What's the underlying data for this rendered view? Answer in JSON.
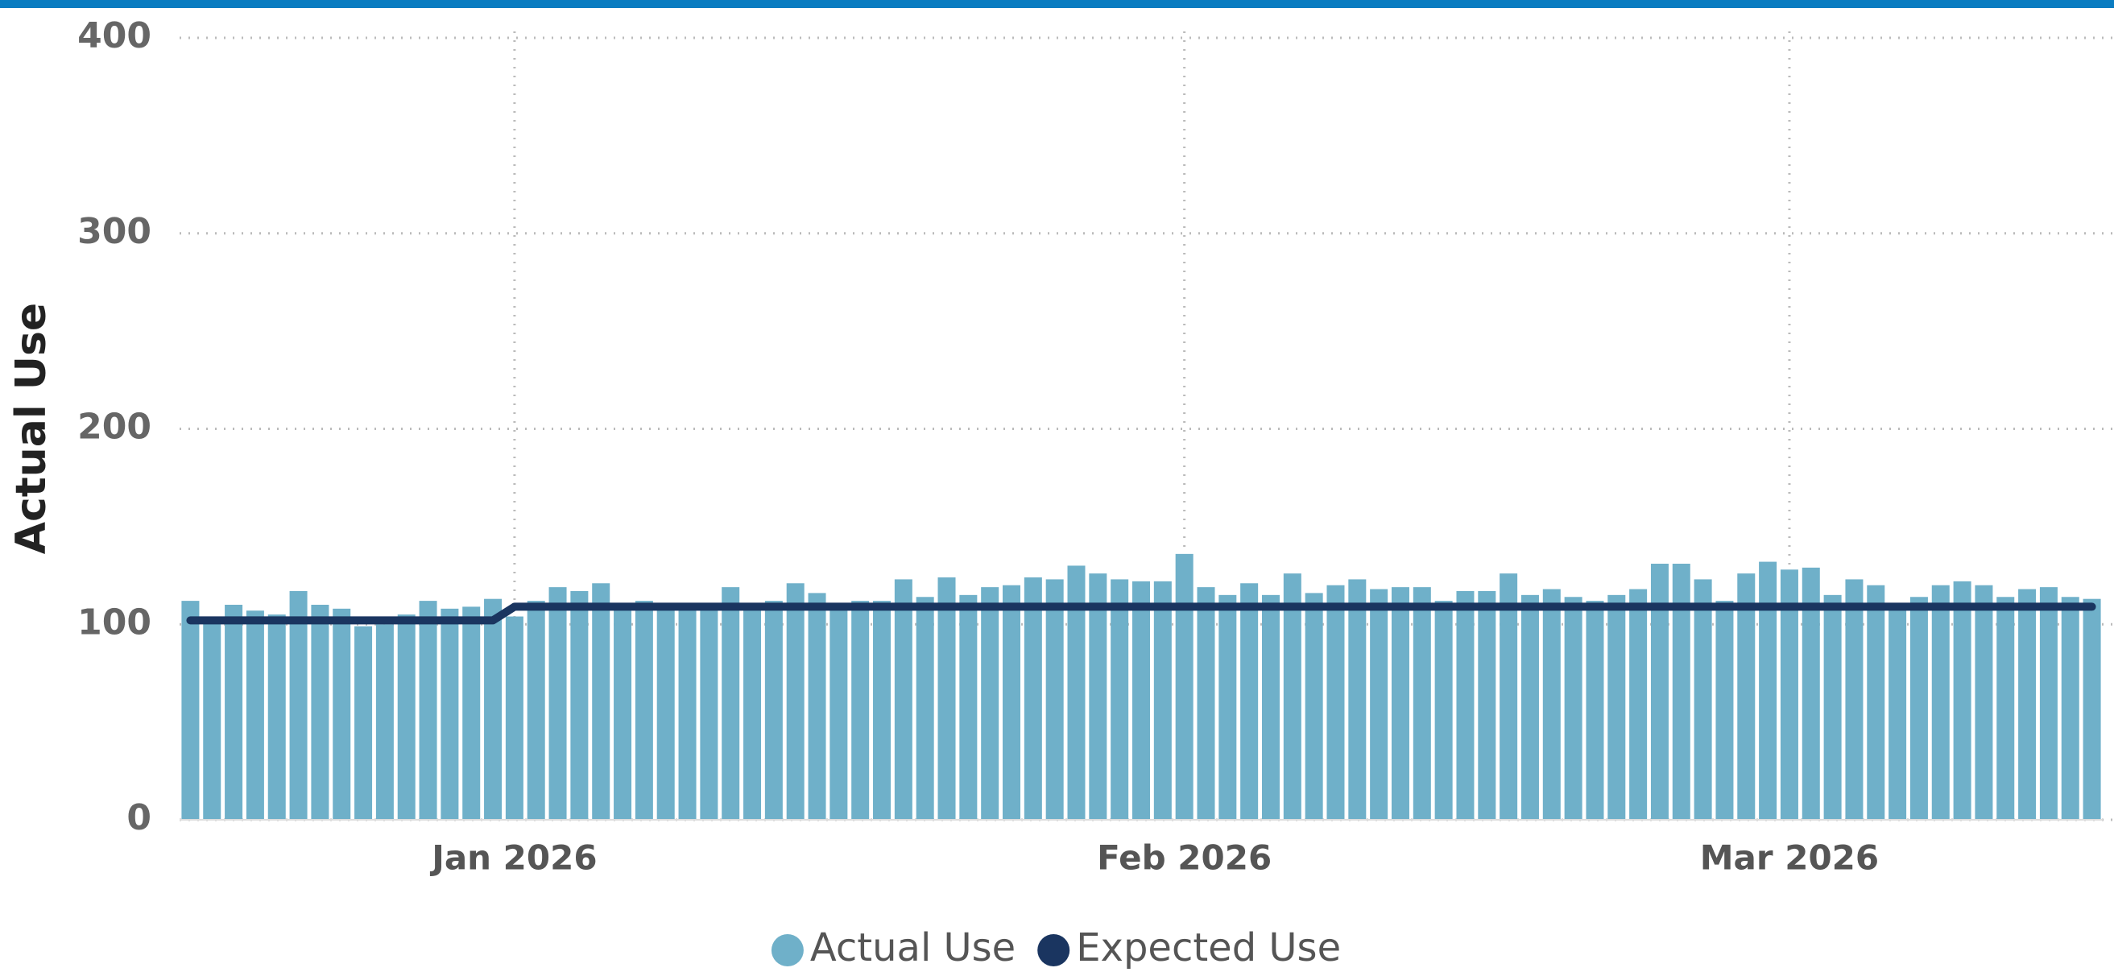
{
  "chart_data": {
    "type": "bar",
    "y_label": "Actual Use",
    "categories": [
      null,
      null,
      null,
      null,
      null,
      null,
      null,
      null,
      null,
      null,
      null,
      null,
      null,
      null,
      null,
      "Jan 2026",
      null,
      null,
      null,
      null,
      null,
      null,
      null,
      null,
      null,
      null,
      null,
      null,
      null,
      null,
      null,
      null,
      null,
      null,
      null,
      null,
      null,
      null,
      null,
      null,
      null,
      null,
      null,
      null,
      null,
      null,
      "Feb 2026",
      null,
      null,
      null,
      null,
      null,
      null,
      null,
      null,
      null,
      null,
      null,
      null,
      null,
      null,
      null,
      null,
      null,
      null,
      null,
      null,
      null,
      null,
      null,
      null,
      null,
      null,
      null,
      "Mar 2026",
      null,
      null,
      null,
      null,
      null,
      null,
      null,
      null,
      null,
      null,
      null,
      null,
      null,
      null
    ],
    "series": [
      {
        "name": "Actual Use",
        "type": "bar",
        "color": "#6fb0c9",
        "values": [
          112,
          104,
          110,
          107,
          105,
          117,
          110,
          108,
          99,
          100,
          105,
          112,
          108,
          109,
          113,
          104,
          112,
          119,
          117,
          121,
          109,
          112,
          110,
          108,
          108,
          119,
          108,
          112,
          121,
          116,
          108,
          112,
          112,
          123,
          114,
          124,
          115,
          119,
          120,
          124,
          123,
          130,
          126,
          123,
          122,
          122,
          136,
          119,
          115,
          121,
          115,
          126,
          116,
          120,
          123,
          118,
          119,
          119,
          112,
          117,
          117,
          126,
          115,
          118,
          114,
          112,
          115,
          118,
          131,
          131,
          123,
          112,
          126,
          132,
          128,
          129,
          115,
          123,
          120,
          110,
          114,
          120,
          122,
          120,
          114,
          118,
          119,
          114,
          113
        ]
      },
      {
        "name": "Expected Use",
        "type": "line",
        "color": "#1a3560",
        "values": [
          102,
          102,
          102,
          102,
          102,
          102,
          102,
          102,
          102,
          102,
          102,
          102,
          102,
          102,
          102,
          109,
          109,
          109,
          109,
          109,
          109,
          109,
          109,
          109,
          109,
          109,
          109,
          109,
          109,
          109,
          109,
          109,
          109,
          109,
          109,
          109,
          109,
          109,
          109,
          109,
          109,
          109,
          109,
          109,
          109,
          109,
          109,
          109,
          109,
          109,
          109,
          109,
          109,
          109,
          109,
          109,
          109,
          109,
          109,
          109,
          109,
          109,
          109,
          109,
          109,
          109,
          109,
          109,
          109,
          109,
          109,
          109,
          109,
          109,
          109,
          109,
          109,
          109,
          109,
          109,
          109,
          109,
          109,
          109,
          109,
          109,
          109,
          109,
          109
        ]
      }
    ],
    "ylim": [
      0,
      400
    ],
    "yticks": [
      0,
      100,
      200,
      300,
      400
    ],
    "grid": true
  }
}
